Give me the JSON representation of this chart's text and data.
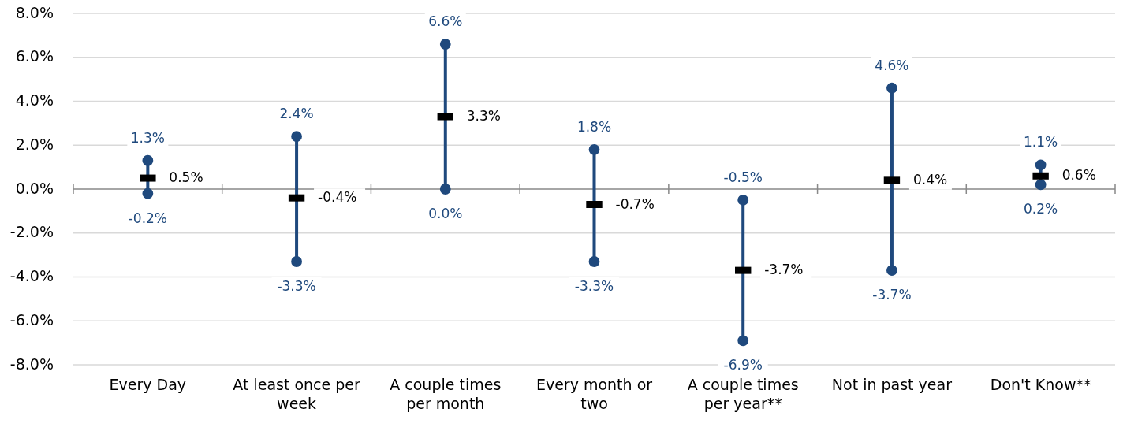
{
  "chart_data": {
    "type": "scatter",
    "categories": [
      "Every Day",
      "At least once per week",
      "A couple times per month",
      "Every month or two",
      "A couple times per year**",
      "Not in past year",
      "Don't Know**"
    ],
    "series": [
      {
        "type": "line",
        "color": "#1f497d",
        "x": [
          "Every Day",
          "Every Day"
        ],
        "values": [
          -0.2,
          1.3
        ],
        "value_labels": [
          "-0.2%",
          "1.3%"
        ]
      },
      {
        "type": "line",
        "color": "#1f497d",
        "x": [
          "At least once per week",
          "At least once per week"
        ],
        "values": [
          -3.3,
          2.4
        ],
        "value_labels": [
          "-3.3%",
          "2.4%"
        ]
      },
      {
        "type": "line",
        "color": "#1f497d",
        "x": [
          "A couple times per month",
          "A couple times per month"
        ],
        "values": [
          0.0,
          6.6
        ],
        "value_labels": [
          "0.0%",
          "6.6%"
        ]
      },
      {
        "type": "line",
        "color": "#1f497d",
        "x": [
          "Every month or two",
          "Every month or two"
        ],
        "values": [
          -3.3,
          1.8
        ],
        "value_labels": [
          "-3.3%",
          "1.8%"
        ]
      },
      {
        "type": "line",
        "color": "#1f497d",
        "x": [
          "A couple times per year**",
          "A couple times per year**"
        ],
        "values": [
          -6.9,
          -0.5
        ],
        "value_labels": [
          "-6.9%",
          "-0.5%"
        ]
      },
      {
        "type": "line",
        "color": "#1f497d",
        "x": [
          "Not in past year",
          "Not in past year"
        ],
        "values": [
          -3.7,
          4.6
        ],
        "value_labels": [
          "-3.7%",
          "4.6%"
        ]
      },
      {
        "type": "line",
        "color": "#1f497d",
        "x": [
          "Don't Know**",
          "Don't Know**"
        ],
        "values": [
          0.2,
          1.1
        ],
        "value_labels": [
          "0.2%",
          "1.1%"
        ]
      },
      {
        "type": "scatter",
        "color": "#000000",
        "marker": "square",
        "values": [
          0.5,
          -0.4,
          3.3,
          -0.7,
          -3.7,
          0.4,
          0.6
        ],
        "value_labels": [
          "0.5%",
          "-0.4%",
          "3.3%",
          "-0.7%",
          "-3.7%",
          "0.4%",
          "0.6%"
        ]
      }
    ],
    "ylim": [
      -8,
      8
    ],
    "yticks": [
      {
        "value": -8,
        "label": "-8.0%"
      },
      {
        "value": -6,
        "label": "-6.0%"
      },
      {
        "value": -4,
        "label": "-4.0%"
      },
      {
        "value": -2,
        "label": "-2.0%"
      },
      {
        "value": 0,
        "label": "0.0%"
      },
      {
        "value": 2,
        "label": "2.0%"
      },
      {
        "value": 4,
        "label": "4.0%"
      },
      {
        "value": 6,
        "label": "6.0%"
      },
      {
        "value": 8,
        "label": "8.0%"
      }
    ],
    "grid": "y",
    "marker": "circle"
  }
}
